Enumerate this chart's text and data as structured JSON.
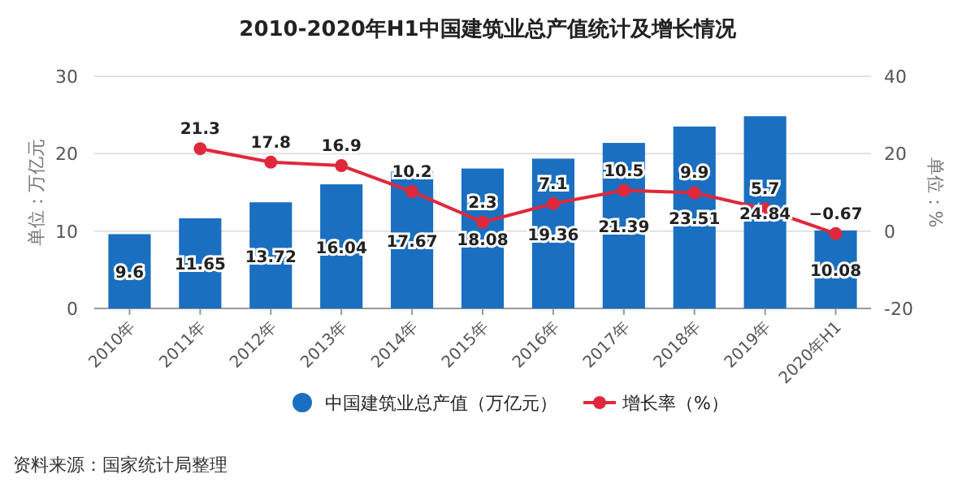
{
  "chart_data": {
    "type": "bar",
    "title": "2010-2020年H1中国建筑业总产值统计及增长情况",
    "categories": [
      "2010年",
      "2011年",
      "2012年",
      "2013年",
      "2014年",
      "2015年",
      "2016年",
      "2017年",
      "2018年",
      "2019年",
      "2020年H1"
    ],
    "series": [
      {
        "name": "中国建筑业总产值（万亿元）",
        "color": "#1a6fc0",
        "values": [
          9.6,
          11.65,
          13.72,
          16.04,
          17.67,
          18.08,
          19.36,
          21.39,
          23.51,
          24.84,
          10.08
        ]
      },
      {
        "name": "增长率（%）",
        "type": "line",
        "axis": "y2",
        "color": "#e0283c",
        "values": [
          null,
          21.3,
          17.8,
          16.9,
          10.2,
          2.3,
          7.1,
          10.5,
          9.9,
          5.7,
          -0.67
        ]
      }
    ],
    "ylabel": "单位：万亿元",
    "y2label": "单位：%",
    "ylim": [
      0,
      30
    ],
    "yticks": [
      0,
      10,
      20,
      30
    ],
    "y2lim": [
      -20,
      40
    ],
    "y2ticks": [
      -20,
      0,
      20,
      40
    ],
    "data_labels": true,
    "grid": "y",
    "legend": "bottom",
    "marker": "circle",
    "line_style": "solid",
    "annotations": [
      "资料来源：国家统计局整理"
    ]
  }
}
